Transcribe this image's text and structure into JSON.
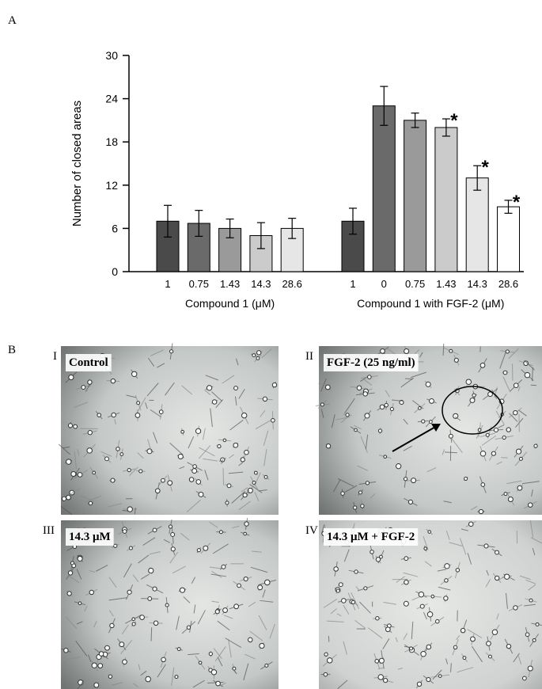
{
  "panel_a_label": "A",
  "panel_b_label": "B",
  "chart_data": {
    "type": "bar",
    "y_label": "Number of closed areas",
    "ylim": [
      0,
      30
    ],
    "yticks": [
      0,
      6,
      12,
      18,
      24,
      30
    ],
    "groups": [
      {
        "label": "Compound 1 (μM)",
        "categories": [
          "1",
          "0.75",
          "1.43",
          "14.3",
          "28.6"
        ],
        "values": [
          7,
          6.7,
          6,
          5,
          6
        ],
        "errors": [
          2.2,
          1.8,
          1.3,
          1.8,
          1.4
        ],
        "colors": [
          "#4a4a4a",
          "#6a6a6a",
          "#9a9a9a",
          "#cbcbcb",
          "#e6e6e6"
        ],
        "significance": [
          null,
          null,
          null,
          null,
          null
        ]
      },
      {
        "label": "Compound 1 with FGF-2 (μM)",
        "categories": [
          "1",
          "0",
          "0.75",
          "1.43",
          "14.3",
          "28.6"
        ],
        "values": [
          7,
          23,
          21,
          20,
          13,
          9
        ],
        "errors": [
          1.8,
          2.7,
          1,
          1.2,
          1.7,
          0.9
        ],
        "colors": [
          "#4a4a4a",
          "#6a6a6a",
          "#9a9a9a",
          "#cbcbcb",
          "#e6e6e6",
          "#ffffff"
        ],
        "significance": [
          null,
          null,
          null,
          "*",
          "*",
          "*"
        ]
      }
    ]
  },
  "images": [
    {
      "numeral": "I",
      "caption": "Control"
    },
    {
      "numeral": "II",
      "caption": "FGF-2 (25 ng/ml)"
    },
    {
      "numeral": "III",
      "caption": "14.3 μM"
    },
    {
      "numeral": "IV",
      "caption": "14.3 μM + FGF-2"
    }
  ]
}
